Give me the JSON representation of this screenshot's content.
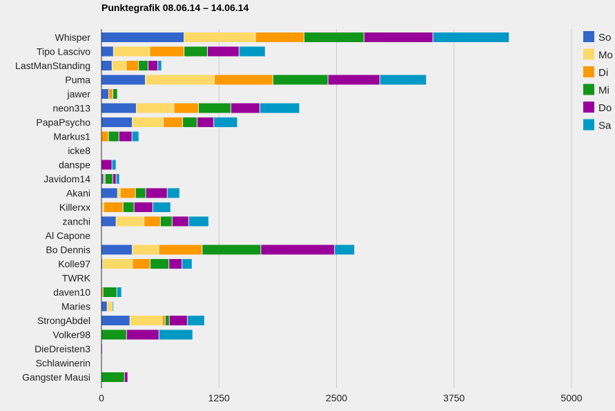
{
  "chart_data": {
    "type": "bar",
    "orientation": "horizontal",
    "stacked": true,
    "title": "Punktegrafik 08.06.14 – 14.06.14",
    "xlabel": "",
    "ylabel": "",
    "xlim": [
      0,
      5000
    ],
    "xticks": [
      "0",
      "1250",
      "2500",
      "3750",
      "5000"
    ],
    "xtick_values": [
      0,
      1250,
      2500,
      3750,
      5000
    ],
    "grid": true,
    "legend_position": "right",
    "categories": [
      "Whisper",
      "Tipo Lascivo",
      "LastManStanding",
      "Puma",
      "jawer",
      "neon313",
      "PapaPsycho",
      "Markus1",
      "icke8",
      "danspe",
      "Javidom14",
      "Akani",
      "Killerxx",
      "zanchi",
      "Al Capone",
      "Bo Dennis",
      "Kolle97",
      "TWRK",
      "daven10",
      "Maries",
      "StrongAbdel",
      "Volker98",
      "DieDreisten3",
      "Schlawinerin",
      "Gangster Mausi"
    ],
    "series": [
      {
        "name": "So",
        "color": "#3366cc",
        "values": [
          882,
          131,
          116,
          470,
          81,
          374,
          331,
          0,
          0,
          0,
          27,
          174,
          0,
          159,
          0,
          331,
          15,
          0,
          0,
          64,
          306,
          0,
          0,
          0,
          0
        ]
      },
      {
        "name": "Mo",
        "color": "#ffd966",
        "values": [
          759,
          385,
          151,
          734,
          0,
          400,
          330,
          0,
          0,
          0,
          0,
          29,
          27,
          297,
          0,
          282,
          318,
          0,
          0,
          56,
          344,
          0,
          0,
          0,
          0
        ]
      },
      {
        "name": "Di",
        "color": "#ff9900",
        "values": [
          517,
          366,
          130,
          623,
          44,
          261,
          206,
          78,
          0,
          0,
          15,
          162,
          206,
          174,
          0,
          461,
          189,
          0,
          20,
          0,
          31,
          0,
          0,
          0,
          0
        ]
      },
      {
        "name": "Mi",
        "color": "#109618",
        "values": [
          638,
          249,
          102,
          586,
          49,
          345,
          154,
          111,
          0,
          0,
          81,
          110,
          117,
          125,
          0,
          625,
          199,
          0,
          147,
          0,
          44,
          270,
          0,
          0,
          248
        ]
      },
      {
        "name": "Do",
        "color": "#990099",
        "values": [
          733,
          336,
          104,
          551,
          0,
          308,
          177,
          139,
          0,
          115,
          36,
          228,
          199,
          176,
          0,
          784,
          139,
          0,
          0,
          0,
          192,
          345,
          12,
          0,
          36
        ]
      },
      {
        "name": "Sa",
        "color": "#0099c6",
        "values": [
          812,
          279,
          41,
          496,
          0,
          423,
          252,
          74,
          0,
          44,
          37,
          133,
          191,
          214,
          0,
          213,
          108,
          0,
          51,
          10,
          183,
          360,
          0,
          0,
          0
        ]
      }
    ]
  }
}
